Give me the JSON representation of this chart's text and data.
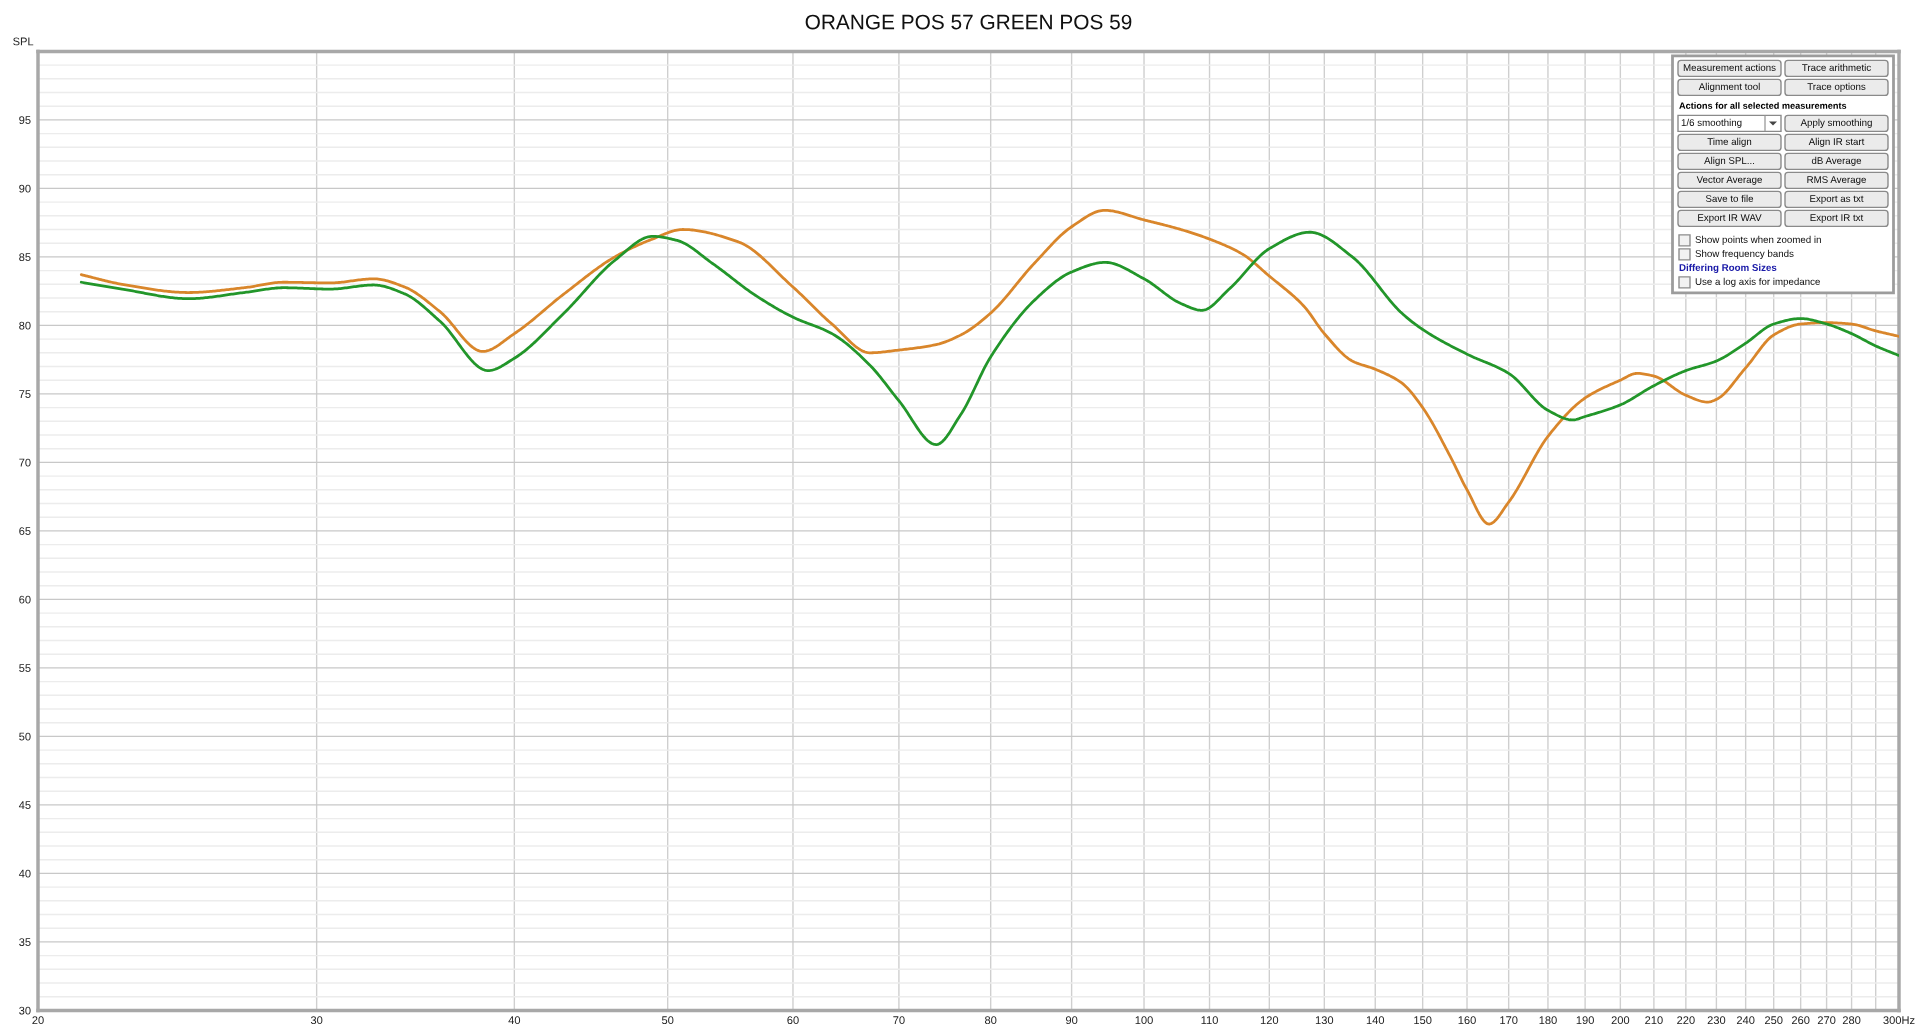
{
  "chart_data": [
    {
      "type": "line",
      "title": "ORANGE POS 57 GREEN POS 59",
      "ylabel": "SPL",
      "log": "x",
      "grid": true,
      "xlim": [
        20,
        300
      ],
      "ylim": [
        30,
        100
      ],
      "xticks": [
        20,
        30,
        40,
        50,
        60,
        70,
        80,
        90,
        100,
        110,
        120,
        130,
        140,
        150,
        160,
        170,
        180,
        190,
        200,
        210,
        220,
        230,
        240,
        250,
        260,
        270,
        280,
        {
          "value": 290,
          "label": null
        },
        {
          "value": 300,
          "label": "300Hz"
        }
      ],
      "yticks": [
        30,
        35,
        40,
        45,
        50,
        55,
        60,
        65,
        70,
        75,
        80,
        85,
        90,
        95
      ],
      "series": [
        {
          "color": "#d9862b",
          "x": [
            21.3,
            22.6,
            24.9,
            27.0,
            28.6,
            30.6,
            32.6,
            34.1,
            35.9,
            38.2,
            40.0,
            43.0,
            46.3,
            48.9,
            51.1,
            55.4,
            60.0,
            63.5,
            67.1,
            70.0,
            73.9,
            76.6,
            80.0,
            85.2,
            90.0,
            94.4,
            100,
            105.5,
            110,
            115.4,
            120,
            126.2,
            130,
            135.4,
            140,
            145.5,
            150,
            156.2,
            160,
            165.2,
            170,
            180,
            190,
            200,
            204.9,
            210,
            220,
            227.1,
            230,
            240,
            250,
            260,
            270,
            280,
            290,
            300
          ],
          "values": [
            83.7,
            83.0,
            82.4,
            82.75,
            83.15,
            83.1,
            83.4,
            82.8,
            81.0,
            78.1,
            79.4,
            82.3,
            85.0,
            86.3,
            87.0,
            86.1,
            82.8,
            80.1,
            78.0,
            78.2,
            78.6,
            79.3,
            80.9,
            84.5,
            87.2,
            88.4,
            87.7,
            87.0,
            86.3,
            85.2,
            83.6,
            81.4,
            79.4,
            77.4,
            76.8,
            75.8,
            74.0,
            70.4,
            68.0,
            65.5,
            67.1,
            71.9,
            74.7,
            76.0,
            76.5,
            76.3,
            74.9,
            74.4,
            74.6,
            76.9,
            79.3,
            80.1,
            80.2,
            80.1,
            79.6,
            79.2
          ]
        },
        {
          "color": "#22962a",
          "x": [
            21.3,
            22.6,
            24.9,
            27.0,
            28.6,
            30.6,
            32.6,
            34.1,
            35.9,
            38.5,
            40.0,
            43.0,
            46.3,
            48.9,
            50.7,
            53.4,
            56.8,
            60.0,
            63.5,
            67.1,
            70.0,
            73.9,
            76.6,
            80.0,
            85.2,
            90.0,
            94.5,
            100,
            105.5,
            108.8,
            113.3,
            120,
            127.3,
            135.4,
            145.5,
            150,
            160,
            170,
            180,
            186.6,
            190,
            200,
            210,
            220,
            230,
            240,
            250,
            260,
            270,
            280,
            290,
            300
          ],
          "values": [
            83.15,
            82.65,
            81.95,
            82.4,
            82.75,
            82.65,
            82.95,
            82.3,
            80.3,
            76.7,
            77.6,
            80.9,
            84.75,
            86.5,
            86.2,
            84.5,
            82.2,
            80.6,
            79.4,
            77.1,
            74.5,
            71.3,
            73.5,
            77.7,
            81.8,
            83.9,
            84.6,
            83.4,
            81.6,
            81.1,
            82.7,
            85.6,
            86.8,
            85.0,
            80.9,
            79.7,
            77.9,
            76.5,
            73.8,
            73.1,
            73.35,
            74.2,
            75.6,
            76.7,
            77.4,
            78.7,
            80.1,
            80.5,
            80.1,
            79.4,
            78.5,
            77.8
          ]
        }
      ]
    },
    {
      "type": "other",
      "annotations": [
        "Measurement actions",
        "Trace arithmetic",
        "Alignment tool",
        "Trace options",
        "Actions for all selected measurements",
        "1/6 smoothing",
        "Apply smoothing",
        "Time align",
        "Align IR start",
        "Align SPL...",
        "dB Average",
        "Vector Average",
        "RMS Average",
        "Save to file",
        "Export as txt",
        "Export IR WAV",
        "Export IR txt",
        "Show points when zoomed in",
        "Show frequency bands",
        "Differing Room Sizes",
        "Use a log axis for impedance"
      ]
    }
  ]
}
